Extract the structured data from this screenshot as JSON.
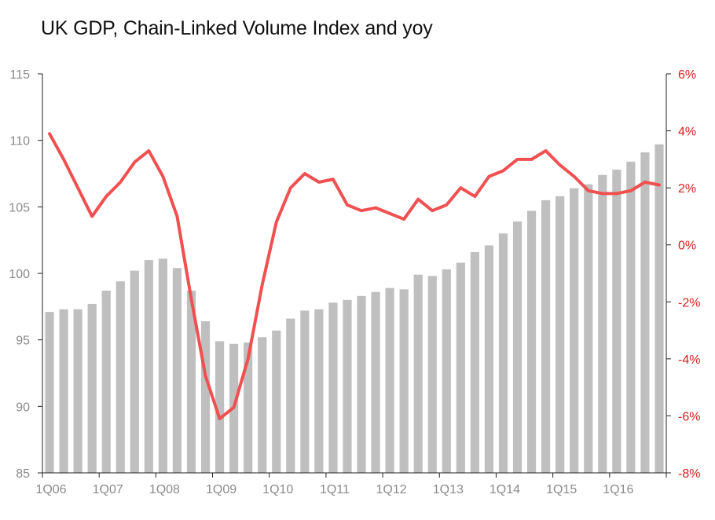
{
  "chart_data": {
    "type": "bar+line",
    "title": "UK GDP, Chain-Linked Volume Index and yoy",
    "xlabel": "",
    "ylabel": "",
    "x_tick_labels": [
      "1Q06",
      "1Q07",
      "1Q08",
      "1Q09",
      "1Q10",
      "1Q11",
      "1Q12",
      "1Q13",
      "1Q14",
      "1Q15",
      "1Q16"
    ],
    "categories": [
      "1Q06",
      "2Q06",
      "3Q06",
      "4Q06",
      "1Q07",
      "2Q07",
      "3Q07",
      "4Q07",
      "1Q08",
      "2Q08",
      "3Q08",
      "4Q08",
      "1Q09",
      "2Q09",
      "3Q09",
      "4Q09",
      "1Q10",
      "2Q10",
      "3Q10",
      "4Q10",
      "1Q11",
      "2Q11",
      "3Q11",
      "4Q11",
      "1Q12",
      "2Q12",
      "3Q12",
      "4Q12",
      "1Q13",
      "2Q13",
      "3Q13",
      "4Q13",
      "1Q14",
      "2Q14",
      "3Q14",
      "4Q14",
      "1Q15",
      "2Q15",
      "3Q15",
      "4Q15",
      "1Q16",
      "2Q16",
      "3Q16",
      "4Q16"
    ],
    "series": [
      {
        "type": "bar",
        "axis": "left",
        "color": "#bfbfbf",
        "values": [
          97.1,
          97.3,
          97.3,
          97.7,
          98.7,
          99.4,
          100.2,
          101.0,
          101.1,
          100.4,
          98.7,
          96.4,
          94.9,
          94.7,
          94.8,
          95.2,
          95.7,
          96.6,
          97.2,
          97.3,
          97.8,
          98.0,
          98.3,
          98.6,
          98.9,
          98.8,
          99.9,
          99.8,
          100.3,
          100.8,
          101.6,
          102.1,
          103.0,
          103.9,
          104.7,
          105.5,
          105.8,
          106.4,
          106.7,
          107.4,
          107.8,
          108.4,
          109.1,
          109.7
        ]
      },
      {
        "type": "line",
        "axis": "right",
        "color": "#f05050",
        "values": [
          3.9,
          3.0,
          2.0,
          1.0,
          1.7,
          2.2,
          2.9,
          3.3,
          2.4,
          1.0,
          -1.9,
          -4.6,
          -6.1,
          -5.7,
          -4.0,
          -1.4,
          0.8,
          2.0,
          2.5,
          2.2,
          2.3,
          1.4,
          1.2,
          1.3,
          1.1,
          0.9,
          1.6,
          1.2,
          1.4,
          2.0,
          1.7,
          2.4,
          2.6,
          3.0,
          3.0,
          3.3,
          2.8,
          2.4,
          1.9,
          1.8,
          1.8,
          1.9,
          2.2,
          2.1
        ]
      }
    ],
    "y_left": {
      "min": 85,
      "max": 115,
      "step": 5,
      "tick_labels": [
        "115",
        "110",
        "105",
        "100",
        "95",
        "90",
        "85"
      ],
      "tick_color": "#8a8a8a"
    },
    "y_right": {
      "min": -8,
      "max": 6,
      "step": 2,
      "tick_labels": [
        "6%",
        "4%",
        "2%",
        "0%",
        "-2%",
        "-4%",
        "-6%",
        "-8%"
      ],
      "tick_color": "#d42020"
    },
    "grid": false,
    "legend": "none"
  }
}
